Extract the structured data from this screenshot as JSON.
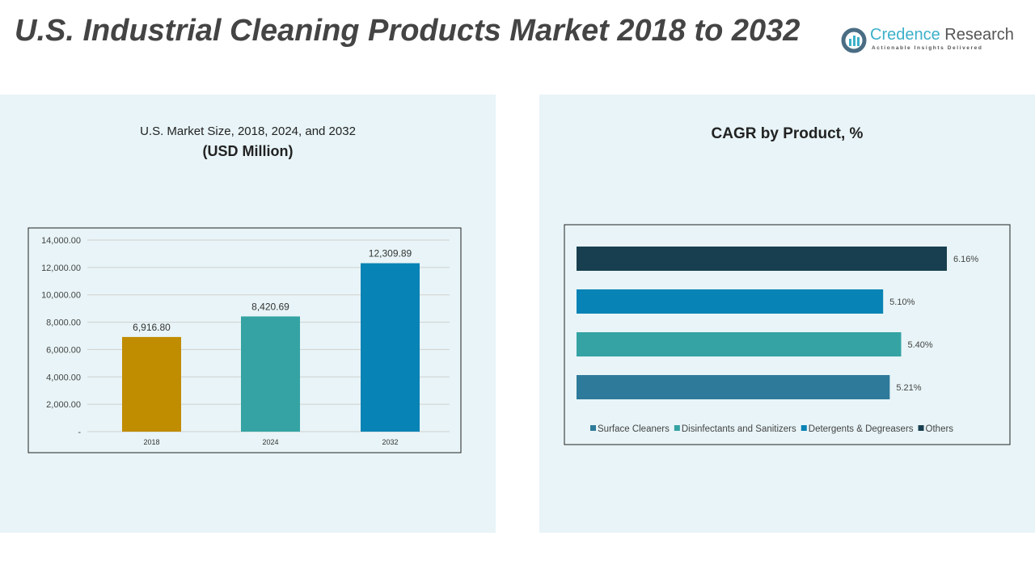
{
  "title": "U.S. Industrial Cleaning Products Market 2018 to 2032",
  "logo": {
    "name_part1": "Credence",
    "name_part2": "Research",
    "tagline": "Actionable Insights Delivered"
  },
  "chart_data": [
    {
      "type": "bar",
      "title": "U.S. Market Size, 2018, 2024, and 2032",
      "subtitle": "(USD Million)",
      "categories": [
        "2018",
        "2024",
        "2032"
      ],
      "values": [
        6916.8,
        8420.69,
        12309.89
      ],
      "value_labels": [
        "6,916.80",
        "8,420.69",
        "12,309.89"
      ],
      "colors": [
        "#c08c00",
        "#35a3a3",
        "#0883b5"
      ],
      "ylim": [
        0,
        14000
      ],
      "yticks": [
        "-",
        "2,000.00",
        "4,000.00",
        "6,000.00",
        "8,000.00",
        "10,000.00",
        "12,000.00",
        "14,000.00"
      ],
      "grid": true
    },
    {
      "type": "bar",
      "orientation": "horizontal",
      "title": "CAGR by Product, %",
      "categories": [
        "Surface Cleaners",
        "Disinfectants and Sanitizers",
        "Detergents & Degreasers",
        "Others"
      ],
      "values": [
        5.21,
        5.4,
        5.1,
        6.16
      ],
      "value_labels": [
        "5.21%",
        "5.40%",
        "5.10%",
        "6.16%"
      ],
      "colors": [
        "#2e7a9a",
        "#35a3a3",
        "#0883b5",
        "#183f4f"
      ],
      "legend": "bottom",
      "grid": false
    }
  ]
}
